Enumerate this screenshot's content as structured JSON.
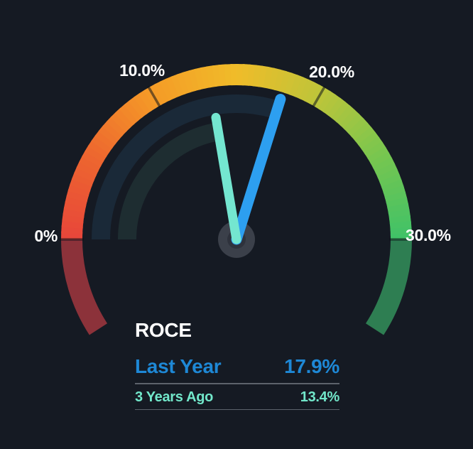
{
  "colors": {
    "background": "#151a23",
    "title": "#ffffff",
    "tick_label": "#ffffff",
    "last_year_text": "#1e88d6",
    "three_years_ago_text": "#72e7ca",
    "divider": "#5d636c"
  },
  "chart_data": {
    "type": "gauge",
    "title": "ROCE",
    "unit": "%",
    "min": 0,
    "max": 30,
    "start_angle_deg": 180,
    "end_angle_deg": 0,
    "extension_deg": 33,
    "ticks": [
      {
        "value": 0,
        "label": "0%"
      },
      {
        "value": 10,
        "label": "10.0%"
      },
      {
        "value": 20,
        "label": "20.0%"
      },
      {
        "value": 30,
        "label": "30.0%"
      }
    ],
    "gradient_stops": [
      [
        0.0,
        "#e8463a"
      ],
      [
        0.17,
        "#ed672f"
      ],
      [
        0.33,
        "#f59a27"
      ],
      [
        0.5,
        "#f0bc29"
      ],
      [
        0.67,
        "#bcc53a"
      ],
      [
        0.83,
        "#78c64f"
      ],
      [
        1.0,
        "#3fc268"
      ]
    ],
    "below_min_color": "#8c323a",
    "above_max_color": "#2e7e52",
    "tick_color": "rgba(13,18,26,0.55)",
    "hub_color": "#3b404a",
    "hub_inner_color": "#2e323c",
    "series": [
      {
        "key": "last-year",
        "name": "Last Year",
        "value": 17.9,
        "display": "17.9%",
        "needle_color": "#2d9ff0",
        "track_color": "#1a2938"
      },
      {
        "key": "three-years-ago",
        "name": "3 Years Ago",
        "value": 13.4,
        "display": "13.4%",
        "needle_color": "#74e6d0",
        "track_color": "#1e2d31"
      }
    ]
  },
  "legend": {
    "title": "ROCE",
    "rows": [
      {
        "label": "Last Year",
        "value": "17.9%"
      },
      {
        "label": "3 Years Ago",
        "value": "13.4%"
      }
    ]
  }
}
